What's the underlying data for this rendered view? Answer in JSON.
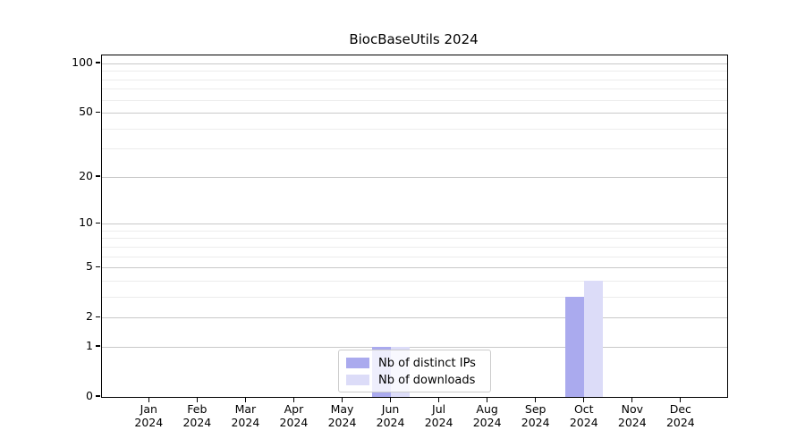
{
  "title": "BiocBaseUtils 2024",
  "chart_data": {
    "type": "bar",
    "title": "BiocBaseUtils 2024",
    "categories": [
      "Jan 2024",
      "Feb 2024",
      "Mar 2024",
      "Apr 2024",
      "May 2024",
      "Jun 2024",
      "Jul 2024",
      "Aug 2024",
      "Sep 2024",
      "Oct 2024",
      "Nov 2024",
      "Dec 2024"
    ],
    "x_tick_labels": [
      {
        "month": "Jan",
        "year": "2024"
      },
      {
        "month": "Feb",
        "year": "2024"
      },
      {
        "month": "Mar",
        "year": "2024"
      },
      {
        "month": "Apr",
        "year": "2024"
      },
      {
        "month": "May",
        "year": "2024"
      },
      {
        "month": "Jun",
        "year": "2024"
      },
      {
        "month": "Jul",
        "year": "2024"
      },
      {
        "month": "Aug",
        "year": "2024"
      },
      {
        "month": "Sep",
        "year": "2024"
      },
      {
        "month": "Oct",
        "year": "2024"
      },
      {
        "month": "Nov",
        "year": "2024"
      },
      {
        "month": "Dec",
        "year": "2024"
      }
    ],
    "series": [
      {
        "name": "Nb of distinct IPs",
        "color": "#aaaaee",
        "values": [
          0,
          0,
          0,
          0,
          0,
          1,
          0,
          0,
          0,
          3,
          0,
          0
        ]
      },
      {
        "name": "Nb of downloads",
        "color": "#dcdcf8",
        "values": [
          0,
          0,
          0,
          0,
          0,
          1,
          0,
          0,
          0,
          4,
          0,
          0
        ]
      }
    ],
    "yscale": "log10(1+x)",
    "ylim": [
      0,
      112
    ],
    "y_tick_values": [
      0,
      1,
      2,
      5,
      10,
      20,
      50,
      100
    ],
    "y_minor_gridlines": [
      3,
      4,
      6,
      7,
      8,
      9,
      30,
      40,
      60,
      70,
      80,
      90
    ],
    "grid": true,
    "legend_position": "inside-bottom-center"
  },
  "colors": {
    "major_grid": "#c9c9c9",
    "minor_grid": "#ececec",
    "axis": "#000000",
    "background": "#ffffff"
  }
}
